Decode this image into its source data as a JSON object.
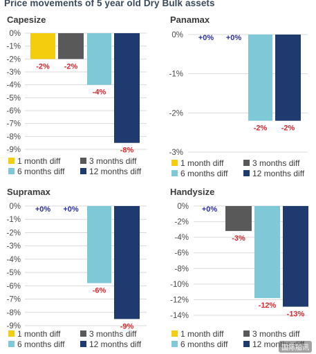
{
  "title": "Price movements of 5 year old Dry Bulk assets",
  "watermark": "国际船讯",
  "colors": {
    "1 month diff": "#f5cd0f",
    "3 months diff": "#595959",
    "6 months diff": "#7ec8d8",
    "12 months diff": "#1f3a6e",
    "label_negative": "#d9262c",
    "label_zero": "#2c2ca8"
  },
  "chart_data": [
    {
      "type": "bar",
      "title": "Capesize",
      "categories": [
        "1 month diff",
        "3 months diff",
        "6 months diff",
        "12 months diff"
      ],
      "values": [
        -2,
        -2,
        -4,
        -8.5
      ],
      "data_labels": [
        "-2%",
        "-2%",
        "-4%",
        "-8%"
      ],
      "ylim": [
        -9,
        0
      ],
      "yticks": [
        0,
        -1,
        -2,
        -3,
        -4,
        -5,
        -6,
        -7,
        -8,
        -9
      ],
      "ytick_labels": [
        "0%",
        "-1%",
        "-2%",
        "-3%",
        "-4%",
        "-5%",
        "-6%",
        "-7%",
        "-8%",
        "-9%"
      ],
      "grid": true,
      "legend": [
        "1 month diff",
        "3 months diff",
        "6 months diff",
        "12 months diff"
      ]
    },
    {
      "type": "bar",
      "title": "Panamax",
      "categories": [
        "1 month diff",
        "3 months diff",
        "6 months diff",
        "12 months diff"
      ],
      "values": [
        0,
        0,
        -2.2,
        -2.2
      ],
      "data_labels": [
        "+0%",
        "+0%",
        "-2%",
        "-2%"
      ],
      "ylim": [
        -3,
        0
      ],
      "yticks": [
        0,
        -1,
        -2,
        -3
      ],
      "ytick_labels": [
        "0%",
        "-1%",
        "-2%",
        "-3%"
      ],
      "grid": true,
      "legend": [
        "1 month diff",
        "3 months diff",
        "6 months diff",
        "12 months diff"
      ]
    },
    {
      "type": "bar",
      "title": "Supramax",
      "categories": [
        "1 month diff",
        "3 months diff",
        "6 months diff",
        "12 months diff"
      ],
      "values": [
        0,
        0,
        -5.8,
        -8.5
      ],
      "data_labels": [
        "+0%",
        "+0%",
        "-6%",
        "-9%"
      ],
      "ylim": [
        -9,
        0
      ],
      "yticks": [
        0,
        -1,
        -2,
        -3,
        -4,
        -5,
        -6,
        -7,
        -8,
        -9
      ],
      "ytick_labels": [
        "0%",
        "-1%",
        "-2%",
        "-3%",
        "-4%",
        "-5%",
        "-6%",
        "-7%",
        "-8%",
        "-9%"
      ],
      "grid": true,
      "legend": [
        "1 month diff",
        "3 months diff",
        "6 months diff",
        "12 months diff"
      ]
    },
    {
      "type": "bar",
      "title": "Handysize",
      "categories": [
        "1 month diff",
        "3 months diff",
        "6 months diff",
        "12 months diff"
      ],
      "values": [
        0,
        -3.2,
        -11.8,
        -12.9
      ],
      "data_labels": [
        "+0%",
        "-3%",
        "-12%",
        "-13%"
      ],
      "ylim": [
        -14,
        0
      ],
      "yticks": [
        0,
        -2,
        -4,
        -6,
        -8,
        -10,
        -12,
        -14
      ],
      "ytick_labels": [
        "0%",
        "-2%",
        "-4%",
        "-6%",
        "-8%",
        "-10%",
        "-12%",
        "-14%"
      ],
      "grid": true,
      "legend": [
        "1 month diff",
        "3 months diff",
        "6 months diff",
        "12 months diff"
      ]
    }
  ]
}
